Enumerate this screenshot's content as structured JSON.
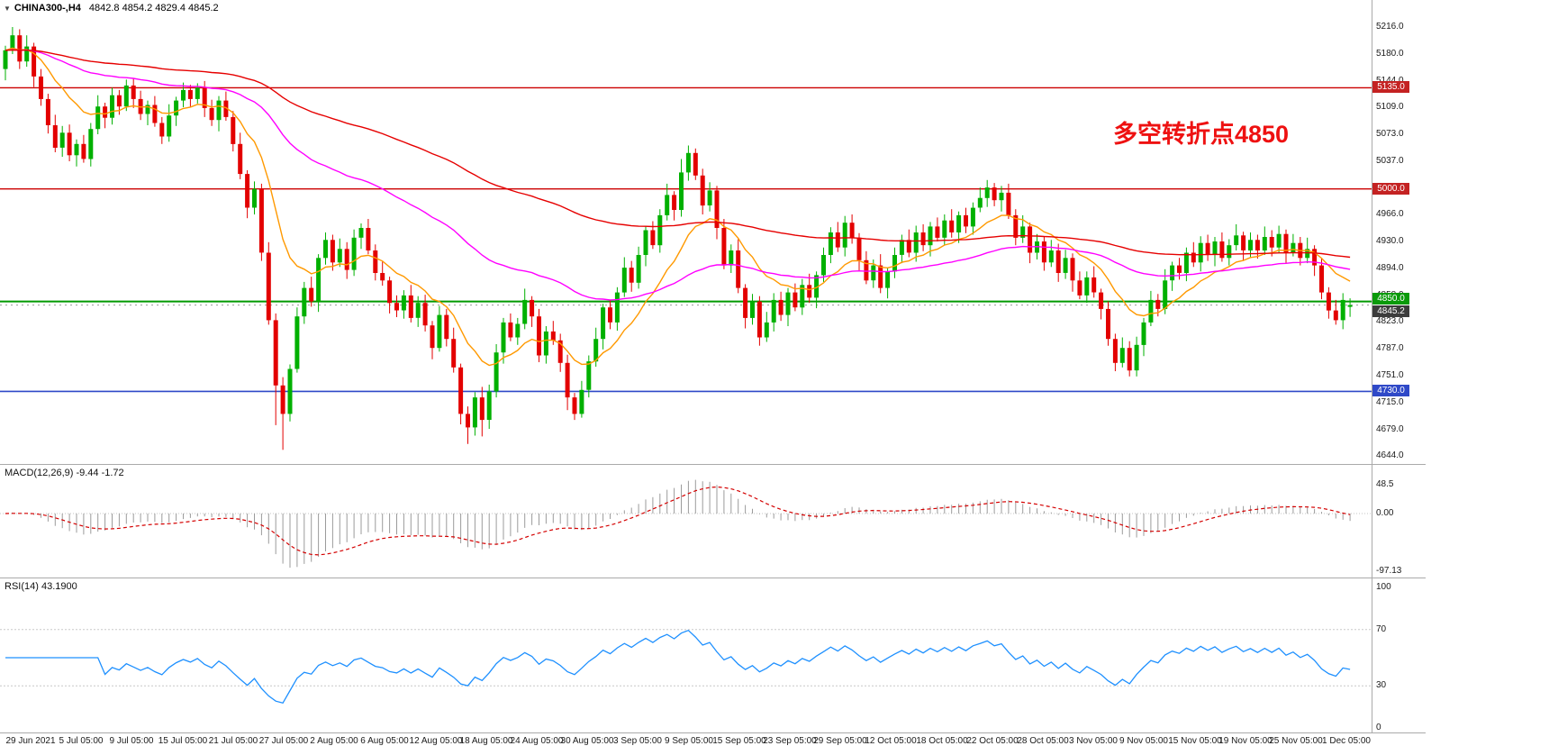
{
  "window": {
    "dropdown_arrow": "▼",
    "symbol_title": "CHINA300-,H4",
    "ohlc_readout": "4842.8 4854.2 4829.4 4845.2"
  },
  "annotation": {
    "text": "多空转折点4850",
    "color": "#EE1111"
  },
  "panes": {
    "macd": {
      "label": "MACD(12,26,9) -9.44 -1.72",
      "ticks": [
        {
          "text": "48.5",
          "value": 48.5
        },
        {
          "text": "0.00",
          "value": 0
        },
        {
          "text": "-97.13",
          "value": -97.13
        }
      ]
    },
    "rsi": {
      "label": "RSI(14) 43.1900",
      "ticks": [
        {
          "text": "100",
          "value": 100
        },
        {
          "text": "70",
          "value": 70
        },
        {
          "text": "30",
          "value": 30
        },
        {
          "text": "0",
          "value": 0
        }
      ]
    }
  },
  "price_axis": {
    "badges": [
      {
        "text": "5135.0",
        "value": 5135.0,
        "color": "#C42222",
        "dy": 0
      },
      {
        "text": "5000.0",
        "value": 5000.0,
        "color": "#C42222",
        "dy": 0
      },
      {
        "text": "4850.0",
        "value": 4850.0,
        "color": "#0A9A0A",
        "dy": -3
      },
      {
        "text": "4845.2",
        "value": 4845.2,
        "color": "#3C3C3C",
        "dy": 7
      },
      {
        "text": "4730.0",
        "value": 4730.0,
        "color": "#2F49C8",
        "dy": 0
      }
    ]
  },
  "time_axis": {
    "labels": [
      "29 Jun 2021",
      "5 Jul 05:00",
      "9 Jul 05:00",
      "15 Jul 05:00",
      "21 Jul 05:00",
      "27 Jul 05:00",
      "2 Aug 05:00",
      "6 Aug 05:00",
      "12 Aug 05:00",
      "18 Aug 05:00",
      "24 Aug 05:00",
      "30 Aug 05:00",
      "3 Sep 05:00",
      "9 Sep 05:00",
      "15 Sep 05:00",
      "23 Sep 05:00",
      "29 Sep 05:00",
      "12 Oct 05:00",
      "18 Oct 05:00",
      "22 Oct 05:00",
      "28 Oct 05:00",
      "3 Nov 05:00",
      "9 Nov 05:00",
      "15 Nov 05:00",
      "19 Nov 05:00",
      "25 Nov 05:00",
      "1 Dec 05:00"
    ]
  },
  "colors": {
    "bull": "#00B000",
    "bear": "#E30000",
    "macd_hist": "#9B9B9B",
    "macd_signal": "#D40000",
    "rsi": "#1E90FF",
    "separator": "#AAAAAA"
  },
  "chart_data": {
    "type": "candlestick",
    "symbol": "CHINA300-",
    "timeframe": "H4",
    "title": "CHINA300-,H4 candlestick chart with MACD and RSI",
    "ylim": [
      4644,
      5216
    ],
    "price_ticks": [
      5216.0,
      5180.0,
      5144.0,
      5109.0,
      5073.0,
      5037.0,
      4966.0,
      4930.0,
      4894.0,
      4858.0,
      4823.0,
      4787.0,
      4751.0,
      4715.0,
      4679.0,
      4644.0
    ],
    "levels": [
      {
        "name": "resistance-5135",
        "value": 5135.0,
        "color": "#CC0000",
        "width": 1.4
      },
      {
        "name": "resistance-5000",
        "value": 5000.0,
        "color": "#CC0000",
        "width": 1.4
      },
      {
        "name": "pivot-4850",
        "value": 4850.0,
        "color": "#009900",
        "width": 2
      },
      {
        "name": "support-4730",
        "value": 4730.0,
        "color": "#2F49C8",
        "width": 1.6
      }
    ],
    "bid_line": {
      "value": 4845.2,
      "color": "#999999"
    },
    "overlays": [
      {
        "name": "ma-fast",
        "period": 13,
        "color": "#FF9900"
      },
      {
        "name": "ma-mid",
        "period": 55,
        "color": "#FF00FF"
      },
      {
        "name": "ma-slow",
        "period": 120,
        "color": "#E60000"
      }
    ],
    "macd": {
      "fast": 12,
      "slow": 26,
      "signal": 9,
      "display_main": -9.44,
      "display_signal": -1.72,
      "scale": [
        48.5,
        0,
        -97.13
      ]
    },
    "rsi": {
      "period": 14,
      "display": 43.19,
      "scale": [
        100,
        70,
        30,
        0
      ],
      "guides": [
        70,
        30
      ]
    },
    "x_labels": [
      "29 Jun 2021",
      "5 Jul 05:00",
      "9 Jul 05:00",
      "15 Jul 05:00",
      "21 Jul 05:00",
      "27 Jul 05:00",
      "2 Aug 05:00",
      "6 Aug 05:00",
      "12 Aug 05:00",
      "18 Aug 05:00",
      "24 Aug 05:00",
      "30 Aug 05:00",
      "3 Sep 05:00",
      "9 Sep 05:00",
      "15 Sep 05:00",
      "23 Sep 05:00",
      "29 Sep 05:00",
      "12 Oct 05:00",
      "18 Oct 05:00",
      "22 Oct 05:00",
      "28 Oct 05:00",
      "3 Nov 05:00",
      "9 Nov 05:00",
      "15 Nov 05:00",
      "19 Nov 05:00",
      "25 Nov 05:00",
      "1 Dec 05:00"
    ],
    "candles": [
      [
        5160,
        5191,
        5145,
        5185
      ],
      [
        5185,
        5216,
        5180,
        5205
      ],
      [
        5205,
        5213,
        5160,
        5170
      ],
      [
        5170,
        5205,
        5163,
        5190
      ],
      [
        5190,
        5195,
        5136,
        5150
      ],
      [
        5150,
        5160,
        5111,
        5120
      ],
      [
        5120,
        5127,
        5074,
        5085
      ],
      [
        5085,
        5099,
        5049,
        5055
      ],
      [
        5055,
        5084,
        5043,
        5075
      ],
      [
        5075,
        5086,
        5037,
        5045
      ],
      [
        5045,
        5066,
        5030,
        5060
      ],
      [
        5060,
        5072,
        5035,
        5040
      ],
      [
        5040,
        5088,
        5030,
        5080
      ],
      [
        5080,
        5125,
        5073,
        5110
      ],
      [
        5110,
        5115,
        5081,
        5095
      ],
      [
        5095,
        5135,
        5086,
        5125
      ],
      [
        5125,
        5132,
        5099,
        5110
      ],
      [
        5110,
        5146,
        5104,
        5138
      ],
      [
        5138,
        5147,
        5108,
        5120
      ],
      [
        5120,
        5131,
        5092,
        5100
      ],
      [
        5100,
        5118,
        5085,
        5112
      ],
      [
        5112,
        5124,
        5083,
        5088
      ],
      [
        5088,
        5096,
        5060,
        5070
      ],
      [
        5070,
        5113,
        5063,
        5098
      ],
      [
        5098,
        5123,
        5084,
        5118
      ],
      [
        5118,
        5142,
        5109,
        5132
      ],
      [
        5132,
        5139,
        5109,
        5120
      ],
      [
        5120,
        5141,
        5114,
        5135
      ],
      [
        5135,
        5144,
        5096,
        5108
      ],
      [
        5108,
        5119,
        5084,
        5092
      ],
      [
        5092,
        5124,
        5077,
        5118
      ],
      [
        5118,
        5130,
        5091,
        5096
      ],
      [
        5096,
        5104,
        5050,
        5060
      ],
      [
        5060,
        5075,
        5013,
        5020
      ],
      [
        5020,
        5025,
        4961,
        4975
      ],
      [
        4975,
        5010,
        4966,
        5000
      ],
      [
        5000,
        5007,
        4904,
        4915
      ],
      [
        4915,
        4929,
        4819,
        4825
      ],
      [
        4825,
        4834,
        4685,
        4738
      ],
      [
        4738,
        4749,
        4652,
        4700
      ],
      [
        4700,
        4766,
        4690,
        4760
      ],
      [
        4760,
        4842,
        4755,
        4830
      ],
      [
        4830,
        4876,
        4820,
        4868
      ],
      [
        4868,
        4883,
        4843,
        4850
      ],
      [
        4850,
        4913,
        4836,
        4908
      ],
      [
        4908,
        4942,
        4899,
        4932
      ],
      [
        4932,
        4939,
        4891,
        4902
      ],
      [
        4902,
        4934,
        4896,
        4920
      ],
      [
        4920,
        4929,
        4880,
        4892
      ],
      [
        4892,
        4946,
        4884,
        4935
      ],
      [
        4935,
        4954,
        4920,
        4948
      ],
      [
        4948,
        4960,
        4913,
        4918
      ],
      [
        4918,
        4926,
        4878,
        4888
      ],
      [
        4888,
        4903,
        4871,
        4878
      ],
      [
        4878,
        4883,
        4834,
        4848
      ],
      [
        4848,
        4858,
        4829,
        4838
      ],
      [
        4838,
        4865,
        4827,
        4858
      ],
      [
        4858,
        4872,
        4822,
        4828
      ],
      [
        4828,
        4857,
        4816,
        4848
      ],
      [
        4848,
        4859,
        4810,
        4818
      ],
      [
        4818,
        4824,
        4773,
        4788
      ],
      [
        4788,
        4844,
        4783,
        4832
      ],
      [
        4832,
        4840,
        4790,
        4800
      ],
      [
        4800,
        4815,
        4755,
        4762
      ],
      [
        4762,
        4767,
        4686,
        4700
      ],
      [
        4700,
        4710,
        4660,
        4682
      ],
      [
        4682,
        4729,
        4671,
        4722
      ],
      [
        4722,
        4736,
        4670,
        4692
      ],
      [
        4692,
        4739,
        4680,
        4730
      ],
      [
        4730,
        4793,
        4722,
        4782
      ],
      [
        4782,
        4828,
        4767,
        4822
      ],
      [
        4822,
        4834,
        4797,
        4802
      ],
      [
        4802,
        4828,
        4792,
        4820
      ],
      [
        4820,
        4867,
        4813,
        4852
      ],
      [
        4852,
        4857,
        4816,
        4830
      ],
      [
        4830,
        4840,
        4769,
        4778
      ],
      [
        4778,
        4817,
        4767,
        4810
      ],
      [
        4810,
        4824,
        4792,
        4798
      ],
      [
        4798,
        4807,
        4756,
        4768
      ],
      [
        4768,
        4779,
        4705,
        4722
      ],
      [
        4722,
        4728,
        4692,
        4700
      ],
      [
        4700,
        4744,
        4695,
        4732
      ],
      [
        4732,
        4778,
        4722,
        4770
      ],
      [
        4770,
        4815,
        4763,
        4800
      ],
      [
        4800,
        4847,
        4786,
        4842
      ],
      [
        4842,
        4852,
        4813,
        4822
      ],
      [
        4822,
        4869,
        4811,
        4862
      ],
      [
        4862,
        4909,
        4856,
        4895
      ],
      [
        4895,
        4904,
        4863,
        4875
      ],
      [
        4875,
        4923,
        4867,
        4912
      ],
      [
        4912,
        4951,
        4897,
        4945
      ],
      [
        4945,
        4957,
        4920,
        4925
      ],
      [
        4925,
        4973,
        4915,
        4965
      ],
      [
        4965,
        5007,
        4958,
        4992
      ],
      [
        4992,
        4997,
        4958,
        4972
      ],
      [
        4972,
        5040,
        4963,
        5022
      ],
      [
        5022,
        5058,
        5011,
        5048
      ],
      [
        5048,
        5054,
        5012,
        5018
      ],
      [
        5018,
        5027,
        4966,
        4978
      ],
      [
        4978,
        5009,
        4970,
        4998
      ],
      [
        4998,
        5004,
        4933,
        4948
      ],
      [
        4948,
        4960,
        4893,
        4898
      ],
      [
        4898,
        4926,
        4888,
        4918
      ],
      [
        4918,
        4933,
        4861,
        4868
      ],
      [
        4868,
        4873,
        4814,
        4828
      ],
      [
        4828,
        4860,
        4819,
        4850
      ],
      [
        4850,
        4857,
        4791,
        4802
      ],
      [
        4802,
        4836,
        4796,
        4822
      ],
      [
        4822,
        4861,
        4810,
        4852
      ],
      [
        4852,
        4863,
        4824,
        4832
      ],
      [
        4832,
        4868,
        4817,
        4862
      ],
      [
        4862,
        4874,
        4837,
        4842
      ],
      [
        4842,
        4880,
        4832,
        4872
      ],
      [
        4872,
        4887,
        4848,
        4855
      ],
      [
        4855,
        4890,
        4841,
        4885
      ],
      [
        4885,
        4922,
        4876,
        4912
      ],
      [
        4912,
        4949,
        4901,
        4942
      ],
      [
        4942,
        4956,
        4916,
        4922
      ],
      [
        4922,
        4964,
        4910,
        4955
      ],
      [
        4955,
        4966,
        4927,
        4935
      ],
      [
        4935,
        4941,
        4890,
        4905
      ],
      [
        4905,
        4917,
        4873,
        4878
      ],
      [
        4878,
        4906,
        4868,
        4898
      ],
      [
        4898,
        4913,
        4861,
        4868
      ],
      [
        4868,
        4895,
        4854,
        4890
      ],
      [
        4890,
        4922,
        4881,
        4912
      ],
      [
        4912,
        4939,
        4901,
        4932
      ],
      [
        4932,
        4946,
        4909,
        4915
      ],
      [
        4915,
        4951,
        4903,
        4942
      ],
      [
        4942,
        4953,
        4917,
        4925
      ],
      [
        4925,
        4956,
        4910,
        4950
      ],
      [
        4950,
        4962,
        4930,
        4935
      ],
      [
        4935,
        4966,
        4925,
        4958
      ],
      [
        4958,
        4973,
        4935,
        4942
      ],
      [
        4942,
        4970,
        4928,
        4965
      ],
      [
        4965,
        4975,
        4941,
        4950
      ],
      [
        4950,
        4982,
        4939,
        4975
      ],
      [
        4975,
        5002,
        4969,
        4988
      ],
      [
        4988,
        5012,
        4976,
        5002
      ],
      [
        5002,
        5008,
        4977,
        4985
      ],
      [
        4985,
        5004,
        4970,
        4995
      ],
      [
        4995,
        5007,
        4960,
        4965
      ],
      [
        4965,
        4973,
        4925,
        4935
      ],
      [
        4935,
        4965,
        4928,
        4950
      ],
      [
        4950,
        4955,
        4901,
        4915
      ],
      [
        4915,
        4940,
        4906,
        4930
      ],
      [
        4930,
        4937,
        4891,
        4902
      ],
      [
        4902,
        4932,
        4896,
        4918
      ],
      [
        4918,
        4927,
        4876,
        4888
      ],
      [
        4888,
        4919,
        4880,
        4908
      ],
      [
        4908,
        4914,
        4863,
        4878
      ],
      [
        4878,
        4890,
        4853,
        4858
      ],
      [
        4858,
        4890,
        4848,
        4882
      ],
      [
        4882,
        4897,
        4855,
        4862
      ],
      [
        4862,
        4867,
        4826,
        4840
      ],
      [
        4840,
        4850,
        4791,
        4800
      ],
      [
        4800,
        4807,
        4757,
        4768
      ],
      [
        4768,
        4802,
        4762,
        4788
      ],
      [
        4788,
        4797,
        4750,
        4758
      ],
      [
        4758,
        4803,
        4750,
        4792
      ],
      [
        4792,
        4828,
        4777,
        4822
      ],
      [
        4822,
        4864,
        4817,
        4852
      ],
      [
        4852,
        4860,
        4830,
        4840
      ],
      [
        4840,
        4893,
        4833,
        4878
      ],
      [
        4878,
        4903,
        4864,
        4898
      ],
      [
        4898,
        4908,
        4879,
        4888
      ],
      [
        4888,
        4922,
        4877,
        4915
      ],
      [
        4915,
        4929,
        4896,
        4902
      ],
      [
        4902,
        4937,
        4890,
        4928
      ],
      [
        4928,
        4939,
        4904,
        4912
      ],
      [
        4912,
        4936,
        4897,
        4930
      ],
      [
        4930,
        4942,
        4903,
        4908
      ],
      [
        4908,
        4933,
        4898,
        4925
      ],
      [
        4925,
        4953,
        4918,
        4938
      ],
      [
        4938,
        4943,
        4904,
        4918
      ],
      [
        4918,
        4942,
        4909,
        4932
      ],
      [
        4932,
        4939,
        4907,
        4918
      ],
      [
        4918,
        4950,
        4912,
        4936
      ],
      [
        4936,
        4945,
        4910,
        4922
      ],
      [
        4922,
        4951,
        4914,
        4940
      ],
      [
        4940,
        4946,
        4900,
        4915
      ],
      [
        4915,
        4940,
        4910,
        4928
      ],
      [
        4928,
        4936,
        4898,
        4908
      ],
      [
        4908,
        4935,
        4901,
        4920
      ],
      [
        4920,
        4925,
        4884,
        4898
      ],
      [
        4898,
        4908,
        4853,
        4862
      ],
      [
        4862,
        4869,
        4827,
        4838
      ],
      [
        4838,
        4852,
        4819,
        4825
      ],
      [
        4825,
        4861,
        4813,
        4852
      ],
      [
        4842.8,
        4854.2,
        4829.4,
        4845.2
      ]
    ]
  }
}
